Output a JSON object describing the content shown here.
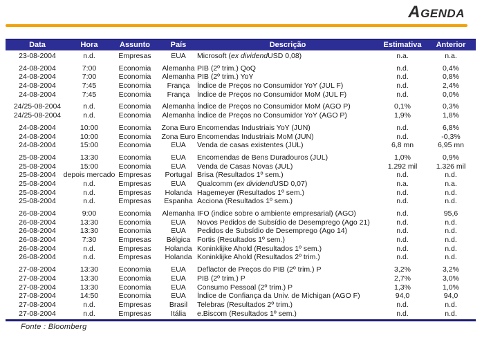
{
  "page": {
    "title": "AGENDA",
    "source_note": "Fonte : Bloomberg"
  },
  "colors": {
    "accent_orange": "#F2A20D",
    "table_header_bg": "#2D2D96",
    "table_header_edge": "#1F1F7A",
    "table_bottom_rule": "#1B1B75"
  },
  "table": {
    "columns": [
      {
        "key": "data",
        "label": "Data"
      },
      {
        "key": "hora",
        "label": "Hora"
      },
      {
        "key": "assunto",
        "label": "Assunto"
      },
      {
        "key": "pais",
        "label": "País"
      },
      {
        "key": "desc",
        "label": "Descrição"
      },
      {
        "key": "estimativa",
        "label": "Estimativa"
      },
      {
        "key": "anterior",
        "label": "Anterior"
      }
    ],
    "groups": [
      [
        {
          "data": "23-08-2004",
          "hora": "n.d.",
          "assunto": "Empresas",
          "pais": "EUA",
          "desc": "Microsoft (ex dividend USD 0,08)",
          "desc_italic": "ex dividend",
          "estimativa": "n.a.",
          "anterior": "n.a."
        }
      ],
      [
        {
          "data": "24-08-2004",
          "hora": "7:00",
          "assunto": "Economia",
          "pais": "Alemanha",
          "desc": "PIB (2º trim.) QoQ",
          "estimativa": "n.d.",
          "anterior": "0,4%"
        },
        {
          "data": "24-08-2004",
          "hora": "7:00",
          "assunto": "Economia",
          "pais": "Alemanha",
          "desc": "PIB (2º trim.) YoY",
          "estimativa": "n.d.",
          "anterior": "0,8%"
        },
        {
          "data": "24-08-2004",
          "hora": "7:45",
          "assunto": "Economia",
          "pais": "França",
          "desc": "Índice de Preços no Consumidor YoY (JUL F)",
          "estimativa": "n.d.",
          "anterior": "2,4%"
        },
        {
          "data": "24-08-2004",
          "hora": "7:45",
          "assunto": "Economia",
          "pais": "França",
          "desc": "Índice de Preços no Consumidor MoM (JUL F)",
          "estimativa": "n.d.",
          "anterior": "0,0%"
        }
      ],
      [
        {
          "data": "24/25-08-2004",
          "hora": "n.d.",
          "assunto": "Economia",
          "pais": "Alemanha",
          "desc": "Índice de Preços no Consumidor MoM (AGO P)",
          "estimativa": "0,1%",
          "anterior": "0,3%"
        },
        {
          "data": "24/25-08-2004",
          "hora": "n.d.",
          "assunto": "Economia",
          "pais": "Alemanha",
          "desc": "Índice de Preços no Consumidor YoY (AGO P)",
          "estimativa": "1,9%",
          "anterior": "1,8%"
        }
      ],
      [
        {
          "data": "24-08-2004",
          "hora": "10:00",
          "assunto": "Economia",
          "pais": "Zona Euro",
          "desc": "Encomendas Industriais YoY (JUN)",
          "estimativa": "n.d.",
          "anterior": "6,8%"
        },
        {
          "data": "24-08-2004",
          "hora": "10:00",
          "assunto": "Economia",
          "pais": "Zona Euro",
          "desc": "Encomendas Industriais MoM (JUN)",
          "estimativa": "n.d.",
          "anterior": "-0,3%"
        },
        {
          "data": "24-08-2004",
          "hora": "15:00",
          "assunto": "Economia",
          "pais": "EUA",
          "desc": "Venda de casas existentes (JUL)",
          "estimativa": "6,8 mn",
          "anterior": "6,95 mn"
        }
      ],
      [
        {
          "data": "25-08-2004",
          "hora": "13:30",
          "assunto": "Economia",
          "pais": "EUA",
          "desc": "Encomendas de Bens Duradouros (JUL)",
          "estimativa": "1,0%",
          "anterior": "0,9%"
        },
        {
          "data": "25-08-2004",
          "hora": "15:00",
          "assunto": "Economia",
          "pais": "EUA",
          "desc": "Venda de Casas Novas (JUL)",
          "estimativa": "1.292 mil",
          "anterior": "1.326 mil"
        },
        {
          "data": "25-08-2004",
          "hora": "depois mercado",
          "assunto": "Empresas",
          "pais": "Portugal",
          "desc": "Brisa (Resultados 1º sem.)",
          "estimativa": "n.d.",
          "anterior": "n.d."
        },
        {
          "data": "25-08-2004",
          "hora": "n.d.",
          "assunto": "Empresas",
          "pais": "EUA",
          "desc": "Qualcomm (ex dividend USD 0,07)",
          "desc_italic": "ex dividend",
          "estimativa": "n.a.",
          "anterior": "n.a."
        },
        {
          "data": "25-08-2004",
          "hora": "n.d.",
          "assunto": "Empresas",
          "pais": "Holanda",
          "desc": "Hagemeyer (Resultados 1º sem.)",
          "estimativa": "n.d.",
          "anterior": "n.d."
        },
        {
          "data": "25-08-2004",
          "hora": "n.d.",
          "assunto": "Empresas",
          "pais": "Espanha",
          "desc": "Acciona (Resultados 1º sem.)",
          "estimativa": "n.d.",
          "anterior": "n.d."
        }
      ],
      [
        {
          "data": "26-08-2004",
          "hora": "9:00",
          "assunto": "Economia",
          "pais": "Alemanha",
          "desc": "IFO (indice sobre o ambiente empresarial) (AGO)",
          "estimativa": "n.d.",
          "anterior": "95,6"
        },
        {
          "data": "26-08-2004",
          "hora": "13:30",
          "assunto": "Economia",
          "pais": "EUA",
          "desc": "Novos Pedidos de Subsídio de Desemprego (Ago 21)",
          "estimativa": "n.d.",
          "anterior": "n.d."
        },
        {
          "data": "26-08-2004",
          "hora": "13:30",
          "assunto": "Economia",
          "pais": "EUA",
          "desc": "Pedidos de Subsídio de Desemprego (Ago 14)",
          "estimativa": "n.d.",
          "anterior": "n.d."
        },
        {
          "data": "26-08-2004",
          "hora": "7:30",
          "assunto": "Empresas",
          "pais": "Bélgica",
          "desc": "Fortis (Resultados 1º sem.)",
          "estimativa": "n.d.",
          "anterior": "n.d."
        },
        {
          "data": "26-08-2004",
          "hora": "n.d.",
          "assunto": "Empresas",
          "pais": "Holanda",
          "desc": "Koninklijke Ahold (Resultados 1º sem.)",
          "estimativa": "n.d.",
          "anterior": "n.d."
        },
        {
          "data": "26-08-2004",
          "hora": "n.d.",
          "assunto": "Empresas",
          "pais": "Holanda",
          "desc": "Koninklijke Ahold (Resultados 2º trim.)",
          "estimativa": "n.d.",
          "anterior": "n.d."
        }
      ],
      [
        {
          "data": "27-08-2004",
          "hora": "13:30",
          "assunto": "Economia",
          "pais": "EUA",
          "desc": "Deflactor de Preços do PIB (2º trim.) P",
          "estimativa": "3,2%",
          "anterior": "3,2%"
        },
        {
          "data": "27-08-2004",
          "hora": "13:30",
          "assunto": "Economia",
          "pais": "EUA",
          "desc": "PIB (2º trim.) P",
          "estimativa": "2,7%",
          "anterior": "3,0%"
        },
        {
          "data": "27-08-2004",
          "hora": "13:30",
          "assunto": "Economia",
          "pais": "EUA",
          "desc": "Consumo Pessoal (2º trim.) P",
          "estimativa": "1,3%",
          "anterior": "1,0%"
        },
        {
          "data": "27-08-2004",
          "hora": "14:50",
          "assunto": "Economia",
          "pais": "EUA",
          "desc": "Índice de Confiança da Univ. de Michigan (AGO F)",
          "estimativa": "94,0",
          "anterior": "94,0"
        },
        {
          "data": "27-08-2004",
          "hora": "n.d.",
          "assunto": "Empresas",
          "pais": "Brasil",
          "desc": "Telebras (Resultados 2º trim.)",
          "estimativa": "n.d.",
          "anterior": "n.d."
        },
        {
          "data": "27-08-2004",
          "hora": "n.d.",
          "assunto": "Empresas",
          "pais": "Itália",
          "desc": "e.Biscom (Resultados 1º sem.)",
          "estimativa": "n.d.",
          "anterior": "n.d."
        }
      ]
    ]
  }
}
